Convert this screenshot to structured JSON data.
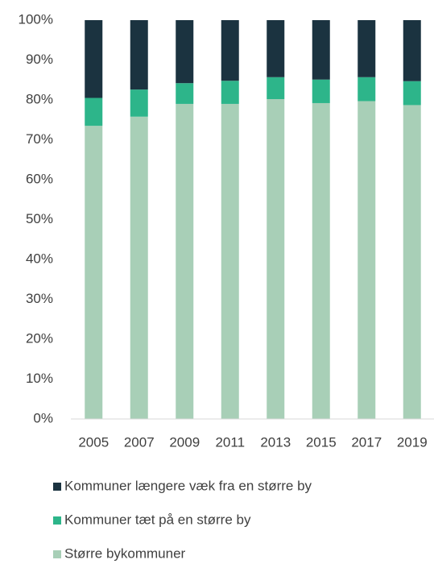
{
  "chart_data": {
    "type": "stacked_bar",
    "categories": [
      "2005",
      "2007",
      "2009",
      "2011",
      "2013",
      "2015",
      "2017",
      "2019"
    ],
    "series": [
      {
        "name": "Større bykommuner",
        "color": "#a8cfb7",
        "values": [
          73.5,
          75.8,
          79,
          79,
          80.2,
          79.2,
          79.7,
          78.7
        ]
      },
      {
        "name": "Kommuner tæt på en større by",
        "color": "#2db58a",
        "values": [
          7,
          6.8,
          5.2,
          5.8,
          5.5,
          5.9,
          6,
          6
        ]
      },
      {
        "name": "Kommuner længere væk fra en større by",
        "color": "#1b3340",
        "values": [
          19.5,
          17.4,
          15.8,
          15.2,
          14.3,
          14.9,
          14.3,
          15.3
        ]
      }
    ],
    "ylim": [
      0,
      100
    ],
    "yticks": [
      {
        "value": 0,
        "label": "0%"
      },
      {
        "value": 10,
        "label": "10%"
      },
      {
        "value": 20,
        "label": "20%"
      },
      {
        "value": 30,
        "label": "30%"
      },
      {
        "value": 40,
        "label": "40%"
      },
      {
        "value": 50,
        "label": "50%"
      },
      {
        "value": 60,
        "label": "60%"
      },
      {
        "value": 70,
        "label": "70%"
      },
      {
        "value": 80,
        "label": "80%"
      },
      {
        "value": 90,
        "label": "90%"
      },
      {
        "value": 100,
        "label": "100%"
      }
    ],
    "grid": false
  }
}
